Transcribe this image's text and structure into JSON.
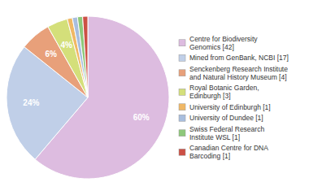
{
  "chart_data": {
    "type": "pie",
    "categories": [
      "Centre for Biodiversity\nGenomics [42]",
      "Mined from GenBank, NCBI [17]",
      "Senckenberg Research Institute\nand Natural History Museum [4]",
      "Royal Botanic Garden,\nEdinburgh [3]",
      "University of Edinburgh [1]",
      "University of Dundee [1]",
      "Swiss Federal Research\nInstitute WSL [1]",
      "Canadian Centre for DNA\nBarcoding [1]"
    ],
    "values": [
      60,
      24,
      6,
      4,
      1,
      1,
      1,
      1
    ],
    "value_labels": [
      "60%",
      "24%",
      "6%",
      "4%",
      null,
      null,
      null,
      null
    ],
    "colors": [
      "#ddbce0",
      "#c0cfe8",
      "#e8a07a",
      "#d4df7a",
      "#f0b865",
      "#a8bede",
      "#8ec87a",
      "#cc5045"
    ],
    "data_labels": true,
    "legend": "right"
  }
}
